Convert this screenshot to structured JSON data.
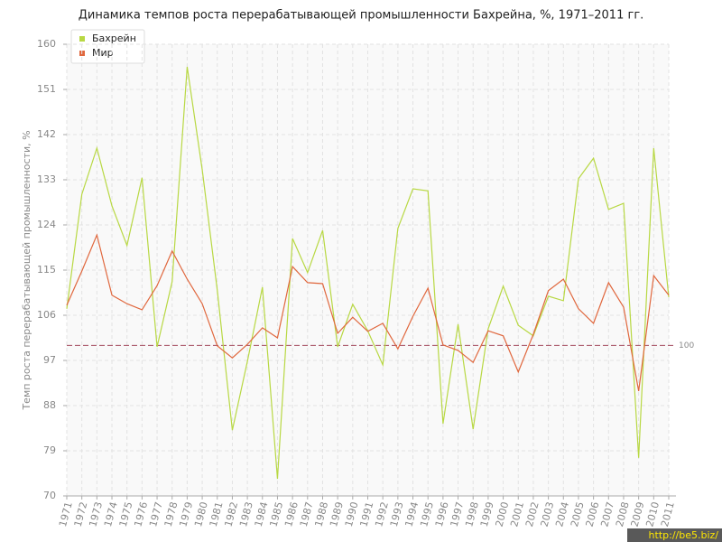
{
  "chart_data": {
    "type": "line",
    "title": "Динамика темпов роста перерабатывающей промышленности Бахрейна, %, 1971–2011 гг.",
    "y_label": "Темп роста перерабатывающей промышленности, %",
    "categories": [
      "1971",
      "1972",
      "1973",
      "1974",
      "1975",
      "1976",
      "1977",
      "1978",
      "1979",
      "1980",
      "1981",
      "1982",
      "1983",
      "1984",
      "1985",
      "1986",
      "1987",
      "1988",
      "1989",
      "1990",
      "1991",
      "1992",
      "1993",
      "1994",
      "1995",
      "1996",
      "1997",
      "1998",
      "1999",
      "2000",
      "2001",
      "2002",
      "2003",
      "2004",
      "2005",
      "2006",
      "2007",
      "2008",
      "2009",
      "2010",
      "2011"
    ],
    "series": [
      {
        "name": "Бахрейн",
        "color": "#b8d843",
        "values": [
          107.3,
          130.1,
          139.3,
          127.8,
          119.9,
          133.4,
          99.7,
          112.7,
          155.5,
          135,
          111,
          83.1,
          96.8,
          111.6,
          73.4,
          121.3,
          114.5,
          122.9,
          99.7,
          108.2,
          102.9,
          96.1,
          123.3,
          131.2,
          130.8,
          84.4,
          104.2,
          83.3,
          103.3,
          111.8,
          104,
          101.9,
          109.8,
          108.9,
          133.2,
          137.3,
          127.1,
          128.3,
          77.6,
          139.3,
          109.6
        ]
      },
      {
        "name": "Мир",
        "color": "#e0673d",
        "values": [
          108,
          114.8,
          122,
          110,
          108.3,
          107.1,
          111.9,
          118.8,
          113.2,
          108.3,
          99.9,
          97.5,
          100.2,
          103.5,
          101.5,
          115.7,
          112.5,
          112.3,
          102.4,
          105.6,
          102.8,
          104.4,
          99.3,
          105.8,
          111.4,
          100.1,
          99,
          96.6,
          102.9,
          101.9,
          94.7,
          102.2,
          110.9,
          113.2,
          107.3,
          104.4,
          112.5,
          107.6,
          90.9,
          113.9,
          110
        ]
      }
    ],
    "ylim": [
      70,
      160
    ],
    "yticks": [
      70,
      79,
      88,
      97,
      106,
      115,
      124,
      133,
      142,
      151,
      160
    ],
    "reference_line": 100,
    "reference_color": "#a34a5e",
    "grid": true,
    "legend": "upper left",
    "watermark": "http://be5.biz/"
  }
}
